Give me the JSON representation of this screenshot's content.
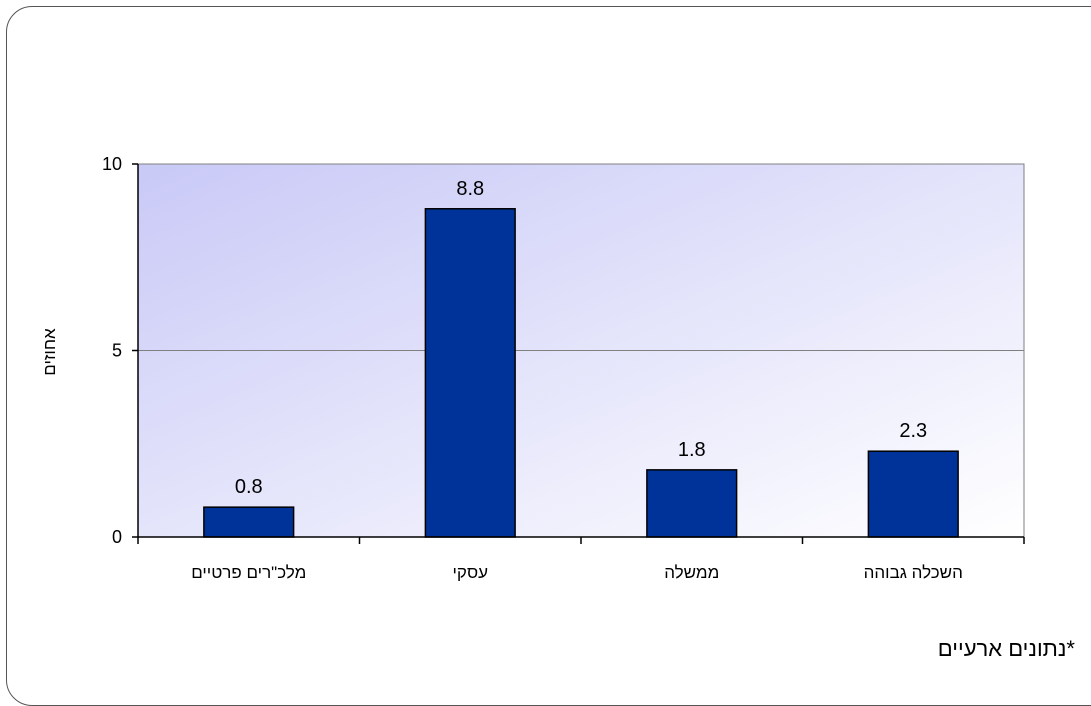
{
  "chart_data": {
    "type": "bar",
    "categories": [
      "מלכ\"רים פרטיים",
      "עסקי",
      "ממשלה",
      "השכלה גבוהה"
    ],
    "values": [
      0.8,
      8.8,
      1.8,
      2.3
    ],
    "data_labels": [
      "0.8",
      "8.8",
      "1.8",
      "2.3"
    ],
    "ylabel": "אחוזים",
    "ylim": [
      0,
      10
    ],
    "yticks": [
      0,
      5,
      10
    ],
    "ytick_labels": [
      "0",
      "5",
      "10"
    ],
    "grid": true,
    "bar_color": "#003399",
    "plot_background": [
      "#c9c9f7",
      "#ffffff"
    ]
  },
  "footnote": "*נתונים ארעיים"
}
